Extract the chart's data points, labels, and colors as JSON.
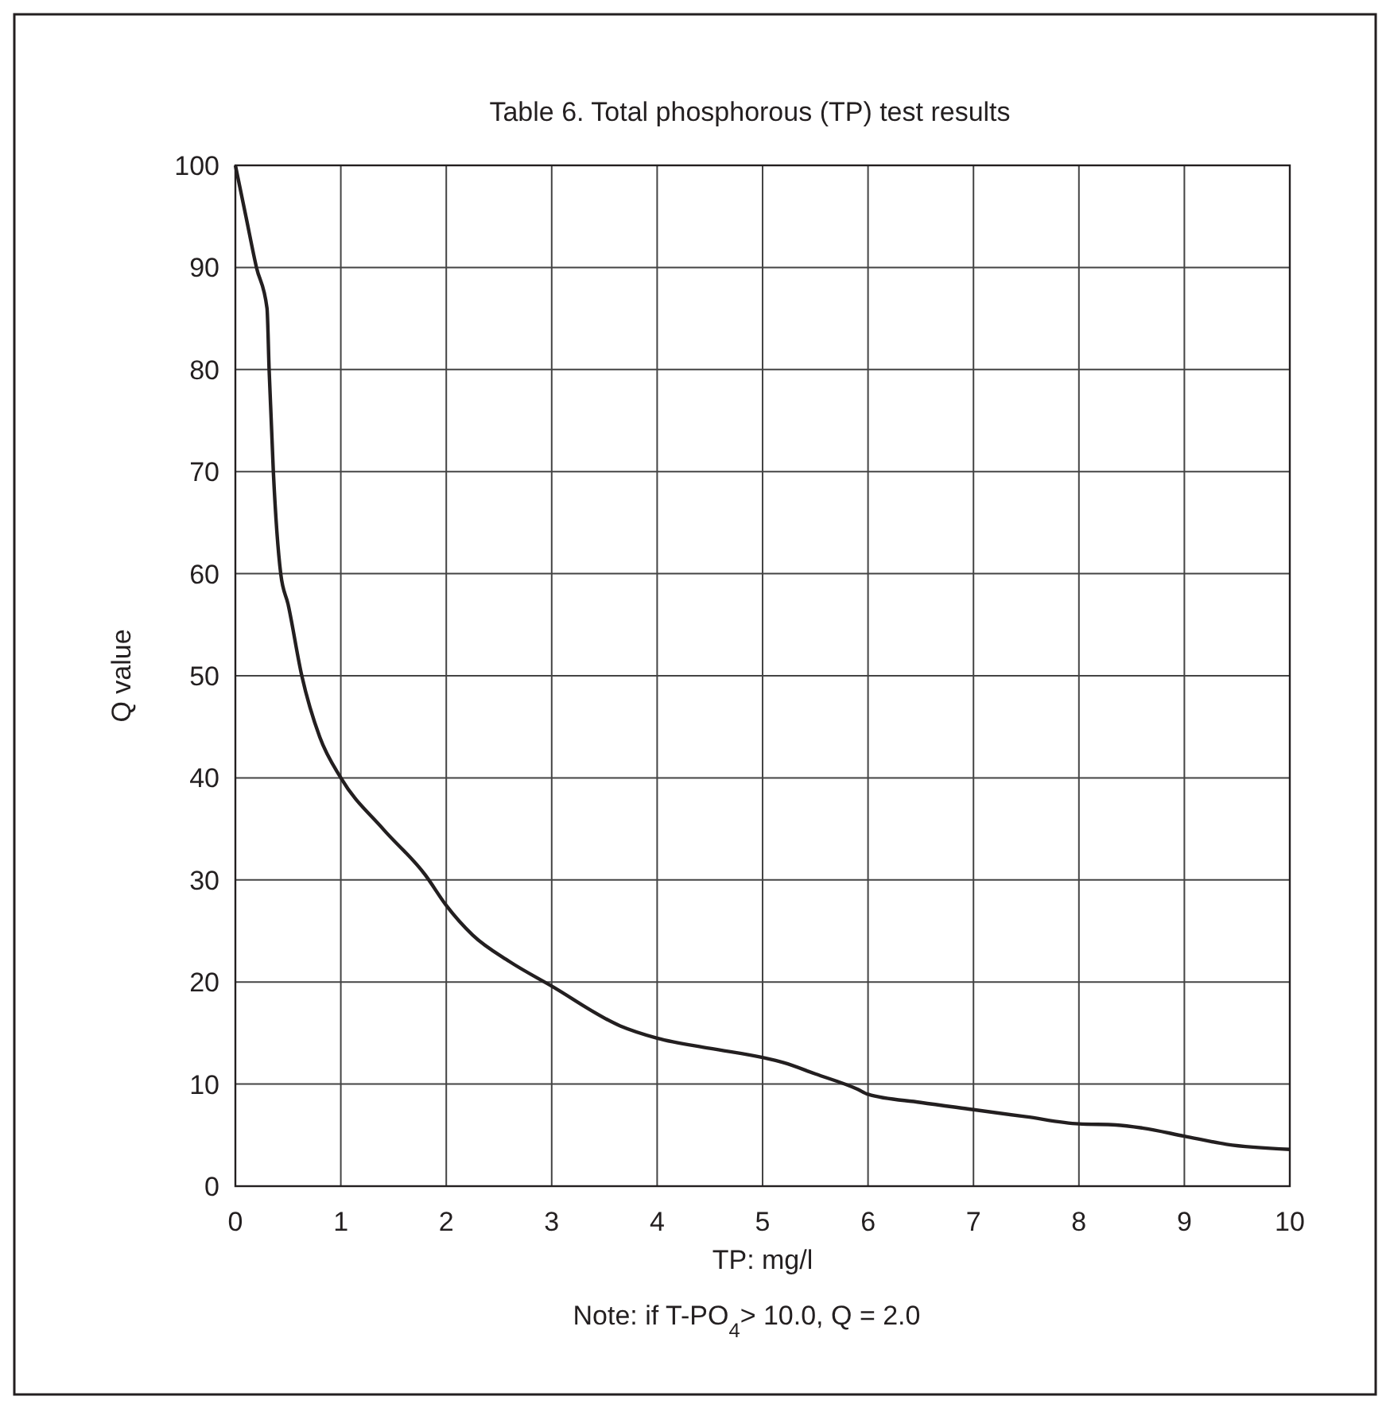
{
  "chart_data": {
    "type": "line",
    "title": "Table 6.   Total phosphorous (TP) test results",
    "xlabel": "TP:  mg/l",
    "ylabel": "Q value",
    "annotations": [
      "Note:  if T-PO$_{4}$> 10.0,   Q = 2.0"
    ],
    "x": [
      0,
      0.1,
      0.2,
      0.3,
      0.32,
      0.36,
      0.43,
      0.5,
      0.63,
      0.8,
      1.0,
      1.4,
      1.8,
      2.0,
      2.25,
      2.6,
      3.0,
      3.65,
      4.0,
      4.5,
      5.0,
      5.2,
      5.5,
      5.9,
      6.0,
      6.5,
      7.0,
      7.5,
      8.0,
      8.35,
      8.6,
      9.0,
      9.4,
      10
    ],
    "series": [
      {
        "color": "#231f20",
        "values": [
          100,
          95,
          90,
          86,
          80,
          70,
          60,
          57,
          50,
          44,
          40,
          35,
          30.5,
          27.5,
          24.6,
          22,
          19.6,
          15.7,
          14.5,
          13.5,
          12.6,
          12.1,
          11,
          9.5,
          9,
          8.2,
          7.5,
          6.8,
          6.1,
          6,
          5.7,
          4.9,
          4.1,
          3.6
        ]
      }
    ],
    "xlim": [
      0,
      10
    ],
    "ylim": [
      0,
      100
    ],
    "xticks": [
      0,
      1,
      2,
      3,
      4,
      5,
      6,
      7,
      8,
      9,
      10
    ],
    "yticks": [
      0,
      10,
      20,
      30,
      40,
      50,
      60,
      70,
      80,
      90,
      100
    ],
    "grid": true,
    "marker": "none",
    "line_style": "solid"
  }
}
